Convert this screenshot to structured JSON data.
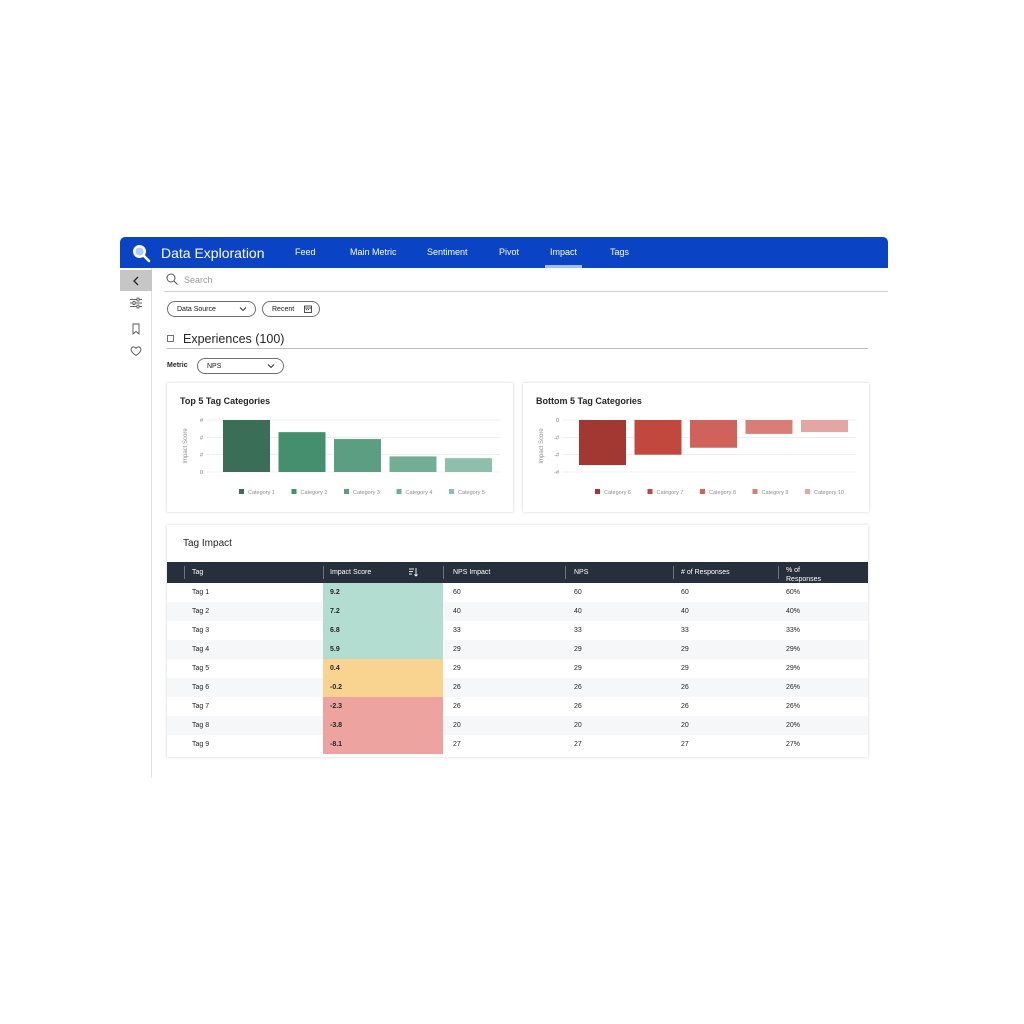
{
  "header": {
    "title": "Data Exploration",
    "nav": [
      {
        "label": "Feed",
        "active": false
      },
      {
        "label": "Main Metric",
        "active": false
      },
      {
        "label": "Sentiment",
        "active": false
      },
      {
        "label": "Pivot",
        "active": false
      },
      {
        "label": "Impact",
        "active": true
      },
      {
        "label": "Tags",
        "active": false
      }
    ]
  },
  "search": {
    "placeholder": "Search"
  },
  "filters": {
    "data_source": "Data Source",
    "recent": "Recent"
  },
  "experiences": {
    "title": "Experiences (100)"
  },
  "metric": {
    "label": "Metric",
    "value": "NPS"
  },
  "top_chart": {
    "title": "Top 5 Tag Categories"
  },
  "bottom_chart": {
    "title": "Bottom 5 Tag Categories"
  },
  "chart_data": [
    {
      "type": "bar",
      "title": "Top 5 Tag Categories",
      "ylabel": "Impact Score",
      "yticks": [
        "0",
        "#",
        "#",
        "#"
      ],
      "categories": [
        "Category 1",
        "Category 2",
        "Category 3",
        "Category 4",
        "Category 5"
      ],
      "values": [
        3.0,
        2.3,
        1.9,
        0.9,
        0.8
      ],
      "ylim": [
        0,
        3
      ],
      "colors": [
        "#3a6e57",
        "#468f6e",
        "#5c9e82",
        "#72ae94",
        "#8dbfaa"
      ],
      "grid": true,
      "legend": "bottom"
    },
    {
      "type": "bar",
      "title": "Bottom 5 Tag Categories",
      "ylabel": "Impact Score",
      "yticks": [
        "0",
        "-#",
        "-#",
        "-#"
      ],
      "categories": [
        "Category 6",
        "Category 7",
        "Category 8",
        "Category 9",
        "Category 10"
      ],
      "values": [
        -2.6,
        -2.0,
        -1.6,
        -0.8,
        -0.7
      ],
      "ylim": [
        -3,
        0
      ],
      "colors": [
        "#a33731",
        "#c2473d",
        "#cf625a",
        "#d87d77",
        "#e4a6a2"
      ],
      "grid": true,
      "legend": "bottom"
    }
  ],
  "tag_impact": {
    "title": "Tag Impact",
    "columns": [
      "Tag",
      "Impact Score",
      "NPS Impact",
      "NPS",
      "# of Responses",
      "% of Responses"
    ],
    "rows": [
      {
        "tag": "Tag 1",
        "score": "9.2",
        "nps_impact": "60",
        "nps": "60",
        "responses": "60",
        "pct": "60%",
        "color": "#b3ddd0"
      },
      {
        "tag": "Tag 2",
        "score": "7.2",
        "nps_impact": "40",
        "nps": "40",
        "responses": "40",
        "pct": "40%",
        "color": "#b3ddd0"
      },
      {
        "tag": "Tag 3",
        "score": "6.8",
        "nps_impact": "33",
        "nps": "33",
        "responses": "33",
        "pct": "33%",
        "color": "#b3ddd0"
      },
      {
        "tag": "Tag 4",
        "score": "5.9",
        "nps_impact": "29",
        "nps": "29",
        "responses": "29",
        "pct": "29%",
        "color": "#b3ddd0"
      },
      {
        "tag": "Tag 5",
        "score": "0.4",
        "nps_impact": "29",
        "nps": "29",
        "responses": "29",
        "pct": "29%",
        "color": "#f8d490"
      },
      {
        "tag": "Tag 6",
        "score": "-0.2",
        "nps_impact": "26",
        "nps": "26",
        "responses": "26",
        "pct": "26%",
        "color": "#f8d490"
      },
      {
        "tag": "Tag 7",
        "score": "-2.3",
        "nps_impact": "26",
        "nps": "26",
        "responses": "26",
        "pct": "26%",
        "color": "#eda4a0"
      },
      {
        "tag": "Tag 8",
        "score": "-3.8",
        "nps_impact": "20",
        "nps": "20",
        "responses": "20",
        "pct": "20%",
        "color": "#eda4a0"
      },
      {
        "tag": "Tag 9",
        "score": "-8.1",
        "nps_impact": "27",
        "nps": "27",
        "responses": "27",
        "pct": "27%",
        "color": "#eda4a0"
      }
    ]
  },
  "icons": {
    "logo": "search-logo-icon",
    "collapse": "chevron-left-icon",
    "filters": "sliders-icon",
    "bookmark": "bookmark-icon",
    "favorite": "heart-icon",
    "search": "search-icon",
    "calendar": "calendar-icon",
    "sort": "sort-icon"
  }
}
